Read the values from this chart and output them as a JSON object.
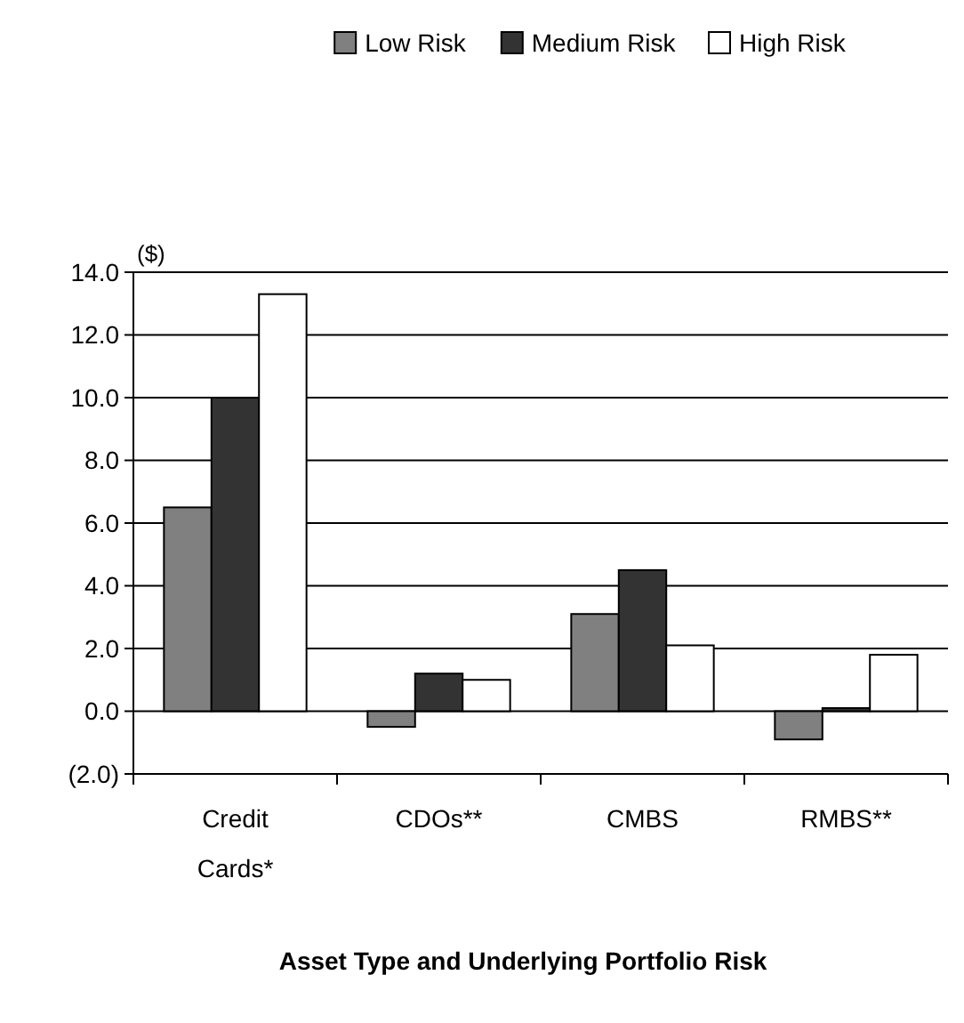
{
  "chart_data": {
    "type": "bar",
    "xlabel": "Asset Type and Underlying Portfolio Risk",
    "ylabel": "($)",
    "categories": [
      "Credit Cards*",
      "CDOs**",
      "CMBS",
      "RMBS**"
    ],
    "series": [
      {
        "name": "Low Risk",
        "color": "#808080",
        "values": [
          6.5,
          -0.5,
          3.1,
          -0.9
        ]
      },
      {
        "name": "Medium Risk",
        "color": "#333333",
        "values": [
          10.0,
          1.2,
          4.5,
          0.1
        ]
      },
      {
        "name": "High Risk",
        "color": "#ffffff",
        "values": [
          13.3,
          1.0,
          2.1,
          1.8
        ]
      }
    ],
    "ylim": [
      -2,
      14
    ],
    "yticks": [
      {
        "value": -2,
        "label": "(2.0)"
      },
      {
        "value": 0,
        "label": "0.0"
      },
      {
        "value": 2,
        "label": "2.0"
      },
      {
        "value": 4,
        "label": "4.0"
      },
      {
        "value": 6,
        "label": "6.0"
      },
      {
        "value": 8,
        "label": "8.0"
      },
      {
        "value": 10,
        "label": "10.0"
      },
      {
        "value": 12,
        "label": "12.0"
      },
      {
        "value": 14,
        "label": "14.0"
      }
    ],
    "grid": "y",
    "legend": "top"
  }
}
